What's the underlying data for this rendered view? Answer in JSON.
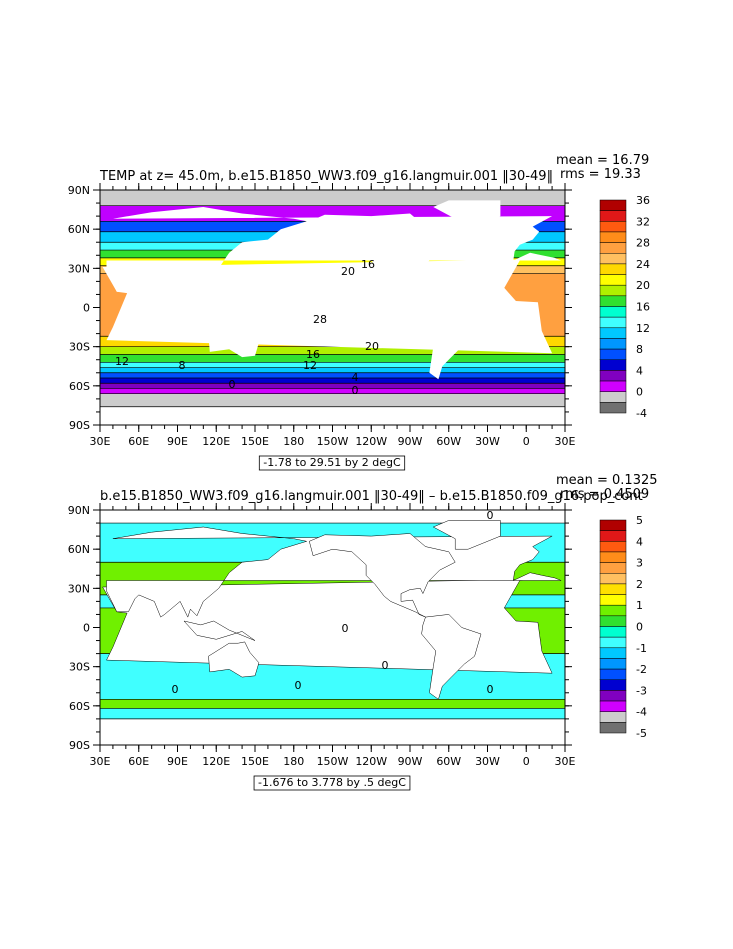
{
  "panels": [
    {
      "title": "TEMP at z=  45.0m, b.e15.B1850_WW3.f09_g16.langmuir.001 ‖30-49‖",
      "mean": "mean = 16.79",
      "rms": "rms = 19.33",
      "range_label": "-1.78 to 29.51 by 2 degC",
      "lat_ticks": [
        "90N",
        "60N",
        "30N",
        "0",
        "30S",
        "60S",
        "90S"
      ],
      "lon_ticks": [
        "30E",
        "60E",
        "90E",
        "120E",
        "150E",
        "180",
        "150W",
        "120W",
        "90W",
        "60W",
        "30W",
        "0",
        "30E"
      ],
      "colorbar_labels": [
        "36",
        "32",
        "28",
        "24",
        "20",
        "16",
        "12",
        "8",
        "4",
        "0",
        "-4"
      ],
      "colorbar_colors": [
        "#b00000",
        "#e01818",
        "#ff5a10",
        "#ff8c1a",
        "#ffa040",
        "#ffc060",
        "#ffd800",
        "#ffff00",
        "#b0f000",
        "#30e030",
        "#00ffd0",
        "#40ffff",
        "#00c8ff",
        "#0096ff",
        "#0050ff",
        "#0000d0",
        "#8000c0",
        "#d000ff",
        "#cccccc",
        "#707070"
      ],
      "contour_labels": [
        "16",
        "20",
        "28",
        "20",
        "16",
        "12",
        "12",
        "8",
        "4",
        "0",
        "0"
      ]
    },
    {
      "title": "b.e15.B1850_WW3.f09_g16.langmuir.001 ‖30-49‖ – b.e15.B1850.f09_g16.pop_cont",
      "mean": "mean = 0.1325",
      "rms": "rms = 0.4509",
      "range_label": "-1.676 to 3.778 by .5 degC",
      "lat_ticks": [
        "90N",
        "60N",
        "30N",
        "0",
        "30S",
        "60S",
        "90S"
      ],
      "lon_ticks": [
        "30E",
        "60E",
        "90E",
        "120E",
        "150E",
        "180",
        "150W",
        "120W",
        "90W",
        "60W",
        "30W",
        "0",
        "30E"
      ],
      "colorbar_labels": [
        "5",
        "4",
        "3",
        "2",
        "1",
        "0",
        "-1",
        "-2",
        "-3",
        "-4",
        "-5"
      ],
      "colorbar_colors": [
        "#b00000",
        "#e01818",
        "#ff5a10",
        "#ff8c1a",
        "#ffa040",
        "#ffc060",
        "#ffe000",
        "#ffff00",
        "#70f000",
        "#30e030",
        "#00ffd0",
        "#40ffff",
        "#00c8ff",
        "#0096ff",
        "#0050ff",
        "#0000d0",
        "#8000c0",
        "#d000ff",
        "#cccccc",
        "#707070"
      ],
      "contour_labels": [
        "0",
        "0",
        "0",
        "0",
        "0",
        "0"
      ]
    }
  ]
}
